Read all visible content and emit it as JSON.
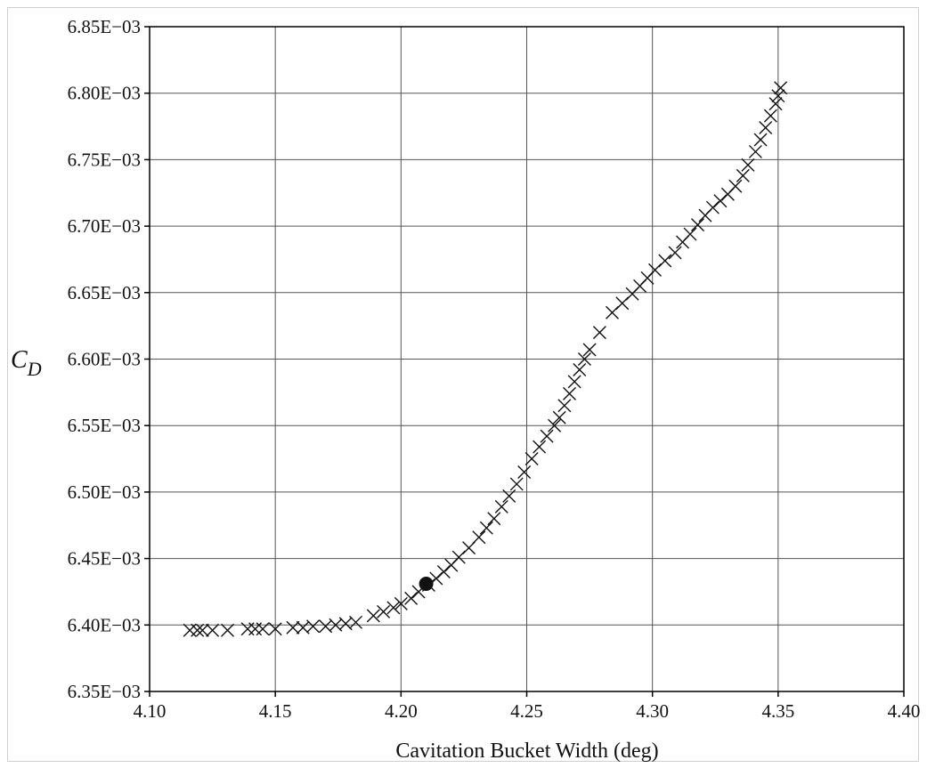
{
  "chart_data": {
    "type": "scatter",
    "xlabel": "Cavitation Bucket Width (deg)",
    "ylabel": "C",
    "ylabel_subscript": "D",
    "xlim": [
      4.1,
      4.4
    ],
    "ylim": [
      0.00635,
      0.00685
    ],
    "x_ticks": [
      "4.10",
      "4.15",
      "4.20",
      "4.25",
      "4.30",
      "4.35",
      "4.40"
    ],
    "y_ticks": [
      "6.35E−03",
      "6.40E−03",
      "6.45E−03",
      "6.50E−03",
      "6.55E−03",
      "6.60E−03",
      "6.65E−03",
      "6.70E−03",
      "6.75E−03",
      "6.80E−03",
      "6.85E−03"
    ],
    "grid": true,
    "marker_color": "#111111",
    "series": [
      {
        "marker": "x",
        "points": [
          [
            4.116,
            0.006396
          ],
          [
            4.119,
            0.006396
          ],
          [
            4.121,
            0.006396
          ],
          [
            4.125,
            0.006396
          ],
          [
            4.131,
            0.006396
          ],
          [
            4.139,
            0.006397
          ],
          [
            4.142,
            0.006397
          ],
          [
            4.145,
            0.006397
          ],
          [
            4.15,
            0.006397
          ],
          [
            4.157,
            0.006398
          ],
          [
            4.161,
            0.006398
          ],
          [
            4.165,
            0.006399
          ],
          [
            4.17,
            0.006399
          ],
          [
            4.174,
            0.0064
          ],
          [
            4.178,
            0.006401
          ],
          [
            4.182,
            0.006402
          ],
          [
            4.189,
            0.006407
          ],
          [
            4.193,
            0.00641
          ],
          [
            4.197,
            0.006413
          ],
          [
            4.2,
            0.006416
          ],
          [
            4.204,
            0.00642
          ],
          [
            4.207,
            0.006425
          ],
          [
            4.211,
            0.00643
          ],
          [
            4.214,
            0.006435
          ],
          [
            4.217,
            0.00644
          ],
          [
            4.22,
            0.006445
          ],
          [
            4.223,
            0.006451
          ],
          [
            4.227,
            0.006458
          ],
          [
            4.231,
            0.006466
          ],
          [
            4.234,
            0.006473
          ],
          [
            4.237,
            0.00648
          ],
          [
            4.24,
            0.006489
          ],
          [
            4.243,
            0.006497
          ],
          [
            4.246,
            0.006506
          ],
          [
            4.249,
            0.006515
          ],
          [
            4.252,
            0.006525
          ],
          [
            4.255,
            0.006534
          ],
          [
            4.258,
            0.006542
          ],
          [
            4.261,
            0.00655
          ],
          [
            4.263,
            0.006556
          ],
          [
            4.265,
            0.006565
          ],
          [
            4.267,
            0.006574
          ],
          [
            4.269,
            0.006583
          ],
          [
            4.271,
            0.006592
          ],
          [
            4.273,
            0.0066
          ],
          [
            4.275,
            0.006607
          ],
          [
            4.279,
            0.00662
          ],
          [
            4.284,
            0.006635
          ],
          [
            4.288,
            0.006642
          ],
          [
            4.292,
            0.006649
          ],
          [
            4.295,
            0.006655
          ],
          [
            4.298,
            0.006661
          ],
          [
            4.301,
            0.006667
          ],
          [
            4.305,
            0.006674
          ],
          [
            4.309,
            0.00668
          ],
          [
            4.312,
            0.006688
          ],
          [
            4.315,
            0.006694
          ],
          [
            4.318,
            0.006701
          ],
          [
            4.321,
            0.006708
          ],
          [
            4.324,
            0.006714
          ],
          [
            4.327,
            0.006719
          ],
          [
            4.33,
            0.006724
          ],
          [
            4.333,
            0.00673
          ],
          [
            4.336,
            0.006738
          ],
          [
            4.338,
            0.006746
          ],
          [
            4.341,
            0.006756
          ],
          [
            4.343,
            0.006765
          ],
          [
            4.345,
            0.006774
          ],
          [
            4.347,
            0.006783
          ],
          [
            4.349,
            0.006792
          ],
          [
            4.35,
            0.006798
          ],
          [
            4.351,
            0.006804
          ]
        ]
      },
      {
        "marker": "filled-circle",
        "points": [
          [
            4.21,
            0.006431
          ]
        ]
      }
    ]
  }
}
